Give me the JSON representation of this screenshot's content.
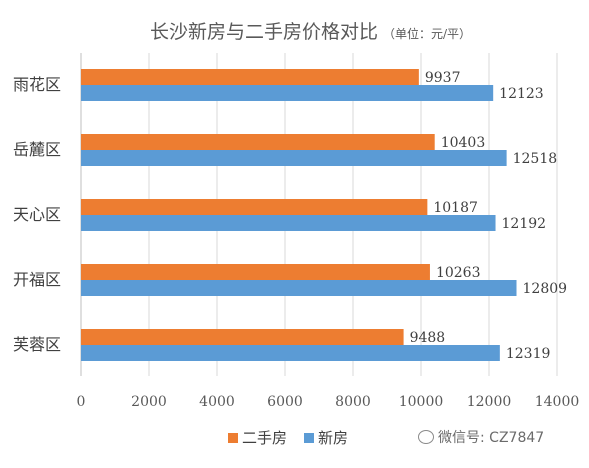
{
  "chart_data": {
    "type": "bar",
    "orientation": "horizontal",
    "title": "长沙新房与二手房价格对比",
    "subtitle": "（单位：元/平）",
    "categories": [
      "雨花区",
      "岳麓区",
      "天心区",
      "开福区",
      "芙蓉区"
    ],
    "series": [
      {
        "name": "二手房",
        "color": "#ED7D31",
        "values": [
          9937,
          10403,
          10187,
          10263,
          9488
        ]
      },
      {
        "name": "新房",
        "color": "#5B9BD5",
        "values": [
          12123,
          12518,
          12192,
          12809,
          12319
        ]
      }
    ],
    "xlim": [
      0,
      14000
    ],
    "xticks": [
      0,
      2000,
      4000,
      6000,
      8000,
      10000,
      12000,
      14000
    ],
    "grid": "vertical",
    "legend_position": "bottom",
    "data_labels": true
  },
  "watermark": {
    "text": "微信号: CZ7847",
    "icon": "wechat-icon"
  }
}
